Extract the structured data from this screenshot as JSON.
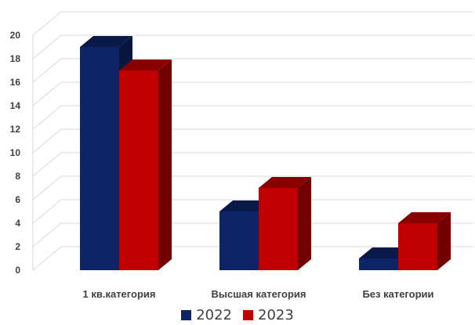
{
  "chart_data": {
    "type": "bar",
    "three_d": true,
    "categories": [
      "1 кв.категория",
      "Высшая категория",
      "Без категории"
    ],
    "series": [
      {
        "name": "2022",
        "values": [
          19,
          5,
          1
        ],
        "color": "#0D2467"
      },
      {
        "name": "2023",
        "values": [
          17,
          7,
          4
        ],
        "color": "#C00000"
      }
    ],
    "ylim": [
      0,
      20
    ],
    "yticks": [
      0,
      2,
      4,
      6,
      8,
      10,
      12,
      14,
      16,
      18,
      20
    ],
    "grid": true,
    "legend_position": "bottom",
    "title": "",
    "xlabel": "",
    "ylabel": ""
  }
}
